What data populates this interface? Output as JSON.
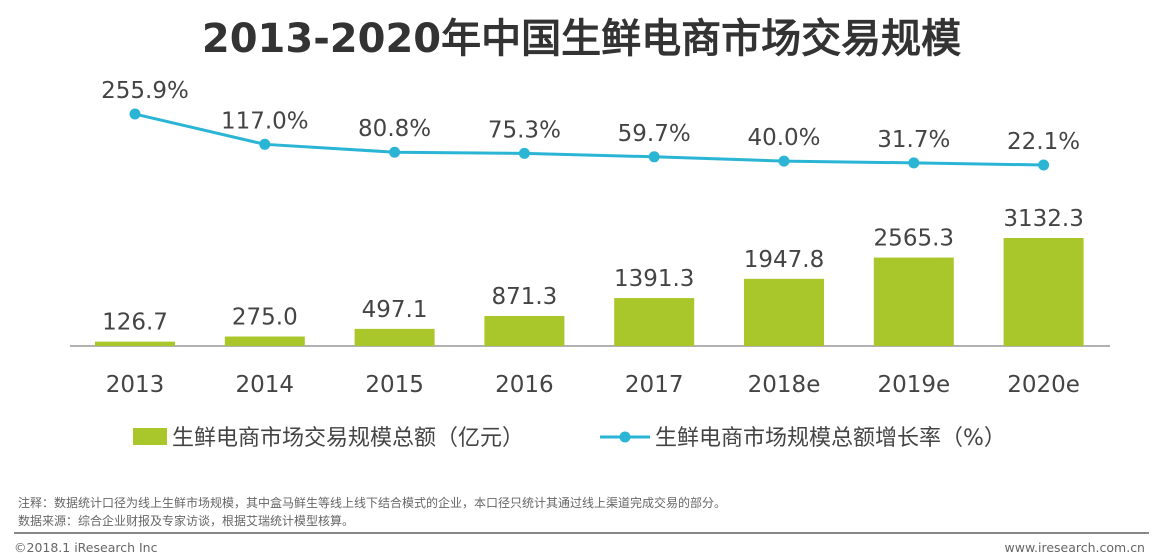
{
  "chart_data": {
    "type": "bar+line",
    "title": "2013-2020年中国生鲜电商市场交易规模",
    "categories": [
      "2013",
      "2014",
      "2015",
      "2016",
      "2017",
      "2018e",
      "2019e",
      "2020e"
    ],
    "series": [
      {
        "name": "生鲜电商市场交易规模总额（亿元）",
        "type": "bar",
        "values": [
          126.7,
          275.0,
          497.1,
          871.3,
          1391.3,
          1947.8,
          2565.3,
          3132.3
        ],
        "labels": [
          "126.7",
          "275.0",
          "497.1",
          "871.3",
          "1391.3",
          "1947.8",
          "2565.3",
          "3132.3"
        ],
        "color": "#a9c72a"
      },
      {
        "name": "生鲜电商市场规模总额增长率（%）",
        "type": "line",
        "values": [
          255.9,
          117.0,
          80.8,
          75.3,
          59.7,
          40.0,
          31.7,
          22.1
        ],
        "labels": [
          "255.9%",
          "117.0%",
          "80.8%",
          "75.3%",
          "59.7%",
          "40.0%",
          "31.7%",
          "22.1%"
        ],
        "color": "#2bb5d5"
      }
    ],
    "legend": "bottom",
    "grid": false
  },
  "notes": {
    "note": "注释：数据统计口径为线上生鲜市场规模，其中盒马鲜生等线上线下结合模式的企业，本口径只统计其通过线上渠道完成交易的部分。",
    "source": "数据来源：综合企业财报及专家访谈，根据艾瑞统计模型核算。"
  },
  "footer": {
    "copyright": "©2018.1 iResearch Inc",
    "site": "www.iresearch.com.cn"
  }
}
